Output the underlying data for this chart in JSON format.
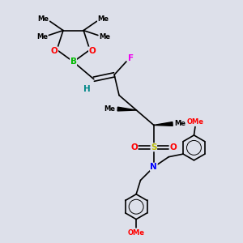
{
  "bg_color": "#dde0ea",
  "bond_color": "#000000",
  "bond_width": 1.2,
  "atom_colors": {
    "O": "#ff0000",
    "B": "#00bb00",
    "F": "#ee00ee",
    "N": "#0000ff",
    "S": "#bbbb00",
    "H": "#008888",
    "C": "#000000"
  },
  "font_size": 7.5,
  "small_font_size": 6.0,
  "figsize": [
    3.0,
    3.0
  ],
  "dpi": 100,
  "xlim": [
    0,
    10
  ],
  "ylim": [
    0,
    10
  ]
}
